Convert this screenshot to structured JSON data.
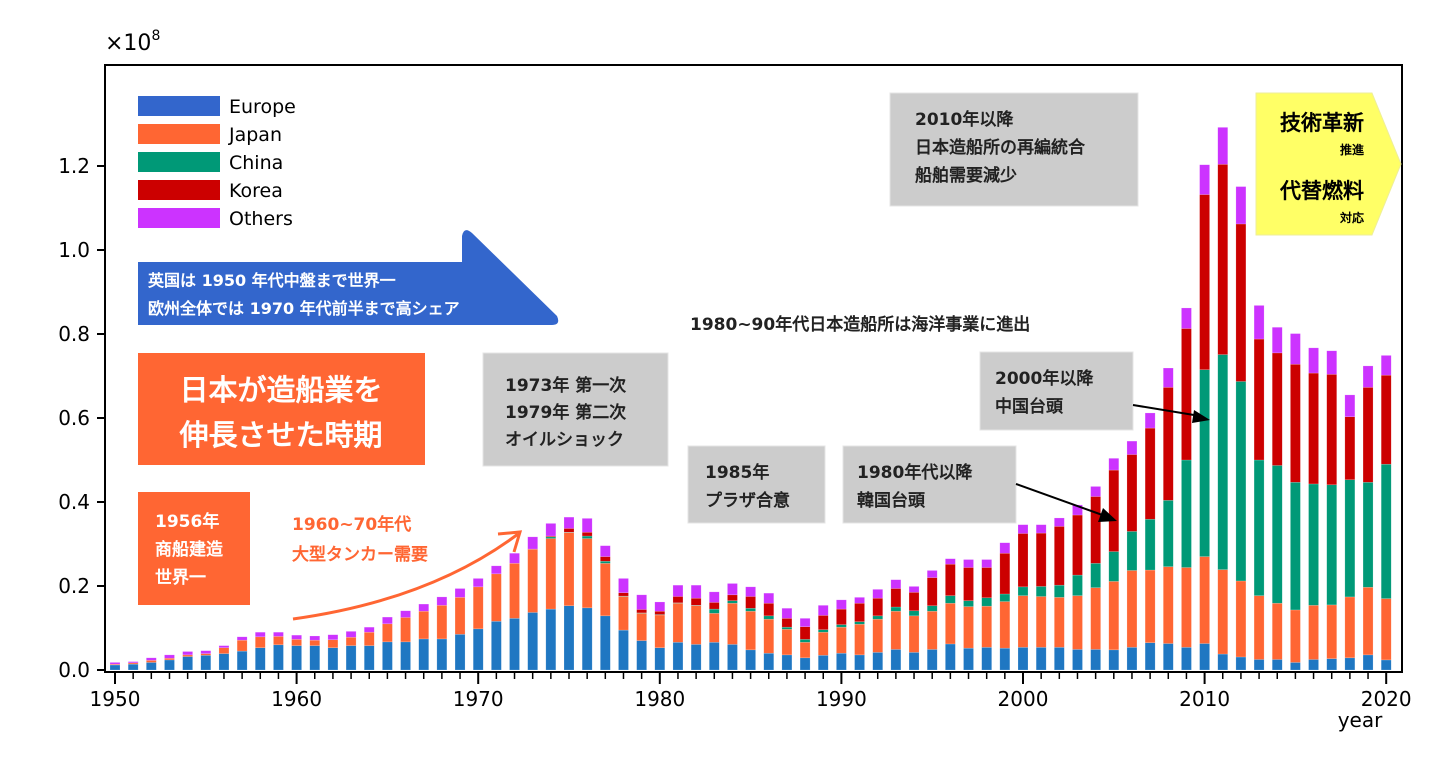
{
  "chart_data": {
    "type": "bar",
    "stacked": true,
    "multiplier_label": "×10",
    "multiplier_exp": "8",
    "xlabel": "year",
    "ylabel": "",
    "ylim": [
      0,
      1.3
    ],
    "xlim": [
      1950,
      2020
    ],
    "yticks": [
      "0.0",
      "0.2",
      "0.4",
      "0.6",
      "0.8",
      "1.0",
      "1.2"
    ],
    "ytick_values": [
      0,
      0.2,
      0.4,
      0.6,
      0.8,
      1.0,
      1.2
    ],
    "xticks": [
      "1950",
      "1960",
      "1970",
      "1980",
      "1990",
      "2000",
      "2010",
      "2020"
    ],
    "legend_position": "top-left",
    "x": [
      1950,
      1951,
      1952,
      1953,
      1954,
      1955,
      1956,
      1957,
      1958,
      1959,
      1960,
      1961,
      1962,
      1963,
      1964,
      1965,
      1966,
      1967,
      1968,
      1969,
      1970,
      1971,
      1972,
      1973,
      1974,
      1975,
      1976,
      1977,
      1978,
      1979,
      1980,
      1981,
      1982,
      1983,
      1984,
      1985,
      1986,
      1987,
      1988,
      1989,
      1990,
      1991,
      1992,
      1993,
      1994,
      1995,
      1996,
      1997,
      1998,
      1999,
      2000,
      2001,
      2002,
      2003,
      2004,
      2005,
      2006,
      2007,
      2008,
      2009,
      2010,
      2011,
      2012,
      2013,
      2014,
      2015,
      2016,
      2017,
      2018,
      2019,
      2020
    ],
    "series": [
      {
        "name": "Europe",
        "color": "#1f77c2",
        "legend_color": "#3366cc",
        "values": [
          0.012,
          0.014,
          0.018,
          0.024,
          0.032,
          0.035,
          0.039,
          0.045,
          0.053,
          0.06,
          0.058,
          0.058,
          0.053,
          0.058,
          0.058,
          0.067,
          0.067,
          0.074,
          0.074,
          0.085,
          0.098,
          0.116,
          0.123,
          0.137,
          0.145,
          0.153,
          0.148,
          0.129,
          0.095,
          0.07,
          0.053,
          0.066,
          0.061,
          0.066,
          0.061,
          0.048,
          0.04,
          0.036,
          0.029,
          0.035,
          0.04,
          0.036,
          0.042,
          0.049,
          0.042,
          0.049,
          0.062,
          0.052,
          0.054,
          0.052,
          0.054,
          0.054,
          0.054,
          0.049,
          0.049,
          0.048,
          0.054,
          0.065,
          0.063,
          0.054,
          0.063,
          0.038,
          0.031,
          0.025,
          0.025,
          0.018,
          0.025,
          0.027,
          0.029,
          0.036,
          0.024
        ]
      },
      {
        "name": "Japan",
        "color": "#ff6633",
        "legend_color": "#ff6633",
        "values": [
          0.002,
          0.003,
          0.005,
          0.004,
          0.004,
          0.004,
          0.014,
          0.026,
          0.026,
          0.02,
          0.015,
          0.013,
          0.019,
          0.02,
          0.032,
          0.043,
          0.058,
          0.066,
          0.08,
          0.088,
          0.1,
          0.113,
          0.131,
          0.15,
          0.168,
          0.174,
          0.165,
          0.125,
          0.08,
          0.065,
          0.078,
          0.093,
          0.092,
          0.069,
          0.098,
          0.092,
          0.081,
          0.061,
          0.037,
          0.055,
          0.062,
          0.073,
          0.079,
          0.091,
          0.087,
          0.091,
          0.097,
          0.099,
          0.098,
          0.111,
          0.123,
          0.121,
          0.119,
          0.128,
          0.147,
          0.163,
          0.183,
          0.173,
          0.183,
          0.19,
          0.207,
          0.201,
          0.181,
          0.152,
          0.134,
          0.125,
          0.129,
          0.128,
          0.145,
          0.161,
          0.146
        ]
      },
      {
        "name": "China",
        "color": "#009977",
        "legend_color": "#009977",
        "values": [
          0,
          0,
          0,
          0,
          0,
          0,
          0,
          0,
          0,
          0,
          0,
          0,
          0,
          0,
          0,
          0,
          0,
          0,
          0,
          0,
          0,
          0,
          0,
          0,
          0.004,
          0.001,
          0.006,
          0.005,
          0.001,
          0.001,
          0.001,
          0.001,
          0.001,
          0.01,
          0.006,
          0.007,
          0.008,
          0.005,
          0.007,
          0.006,
          0.006,
          0.006,
          0.008,
          0.01,
          0.012,
          0.013,
          0.018,
          0.014,
          0.02,
          0.018,
          0.021,
          0.024,
          0.029,
          0.049,
          0.058,
          0.071,
          0.093,
          0.121,
          0.158,
          0.256,
          0.445,
          0.512,
          0.475,
          0.323,
          0.328,
          0.304,
          0.289,
          0.286,
          0.279,
          0.25,
          0.32
        ]
      },
      {
        "name": "Korea",
        "color": "#cc0000",
        "legend_color": "#cc0000",
        "values": [
          0,
          0,
          0,
          0,
          0,
          0,
          0,
          0,
          0,
          0,
          0,
          0,
          0,
          0,
          0,
          0,
          0,
          0,
          0,
          0,
          0,
          0,
          0,
          0.001,
          0.002,
          0.009,
          0.009,
          0.011,
          0.008,
          0.008,
          0.008,
          0.015,
          0.017,
          0.016,
          0.014,
          0.028,
          0.03,
          0.021,
          0.03,
          0.034,
          0.037,
          0.044,
          0.042,
          0.044,
          0.044,
          0.067,
          0.075,
          0.079,
          0.072,
          0.097,
          0.127,
          0.127,
          0.14,
          0.143,
          0.159,
          0.194,
          0.183,
          0.217,
          0.269,
          0.313,
          0.417,
          0.453,
          0.375,
          0.288,
          0.268,
          0.281,
          0.264,
          0.263,
          0.15,
          0.226,
          0.212
        ]
      },
      {
        "name": "Others",
        "color": "#cc33ff",
        "legend_color": "#cc33ff",
        "values": [
          0.004,
          0.003,
          0.006,
          0.008,
          0.008,
          0.007,
          0.005,
          0.008,
          0.011,
          0.01,
          0.01,
          0.01,
          0.012,
          0.014,
          0.012,
          0.016,
          0.016,
          0.017,
          0.02,
          0.021,
          0.02,
          0.019,
          0.024,
          0.029,
          0.03,
          0.027,
          0.033,
          0.026,
          0.034,
          0.035,
          0.022,
          0.027,
          0.031,
          0.025,
          0.027,
          0.023,
          0.024,
          0.024,
          0.02,
          0.024,
          0.022,
          0.014,
          0.021,
          0.021,
          0.014,
          0.017,
          0.013,
          0.019,
          0.019,
          0.025,
          0.021,
          0.02,
          0.02,
          0.024,
          0.024,
          0.028,
          0.032,
          0.036,
          0.046,
          0.049,
          0.071,
          0.088,
          0.089,
          0.08,
          0.061,
          0.073,
          0.06,
          0.056,
          0.052,
          0.051,
          0.047
        ]
      }
    ],
    "annotations": {
      "uk_arrow": [
        "英国は 1950 年代中盤まで世界一",
        "欧州全体では 1970 年代前半まで高シェア"
      ],
      "japan_period": [
        "日本が造船業を",
        "伸長させた時期"
      ],
      "y1956": [
        "1956年",
        "商船建造",
        "世界一"
      ],
      "tanker": [
        "1960~70年代",
        "大型タンカー需要"
      ],
      "oil_shock": [
        "1973年 第一次",
        "1979年 第二次",
        "オイルショック"
      ],
      "plaza": [
        "1985年",
        "プラザ合意"
      ],
      "korea": [
        "1980年代以降",
        "韓国台頭"
      ],
      "china": [
        "2000年以降",
        "中国台頭"
      ],
      "offshore": "1980~90年代日本造船所は海洋事業に進出",
      "y2010": [
        "2010年以降",
        "日本造船所の再編統合",
        "船舶需要減少"
      ],
      "future": [
        "技術革新",
        "推進",
        "代替燃料",
        "対応"
      ]
    },
    "colors": {
      "annotation_gray": "#cccccc",
      "annotation_orange": "#ff6633",
      "annotation_blue": "#3366cc",
      "annotation_yellow": "#ffff66"
    }
  }
}
